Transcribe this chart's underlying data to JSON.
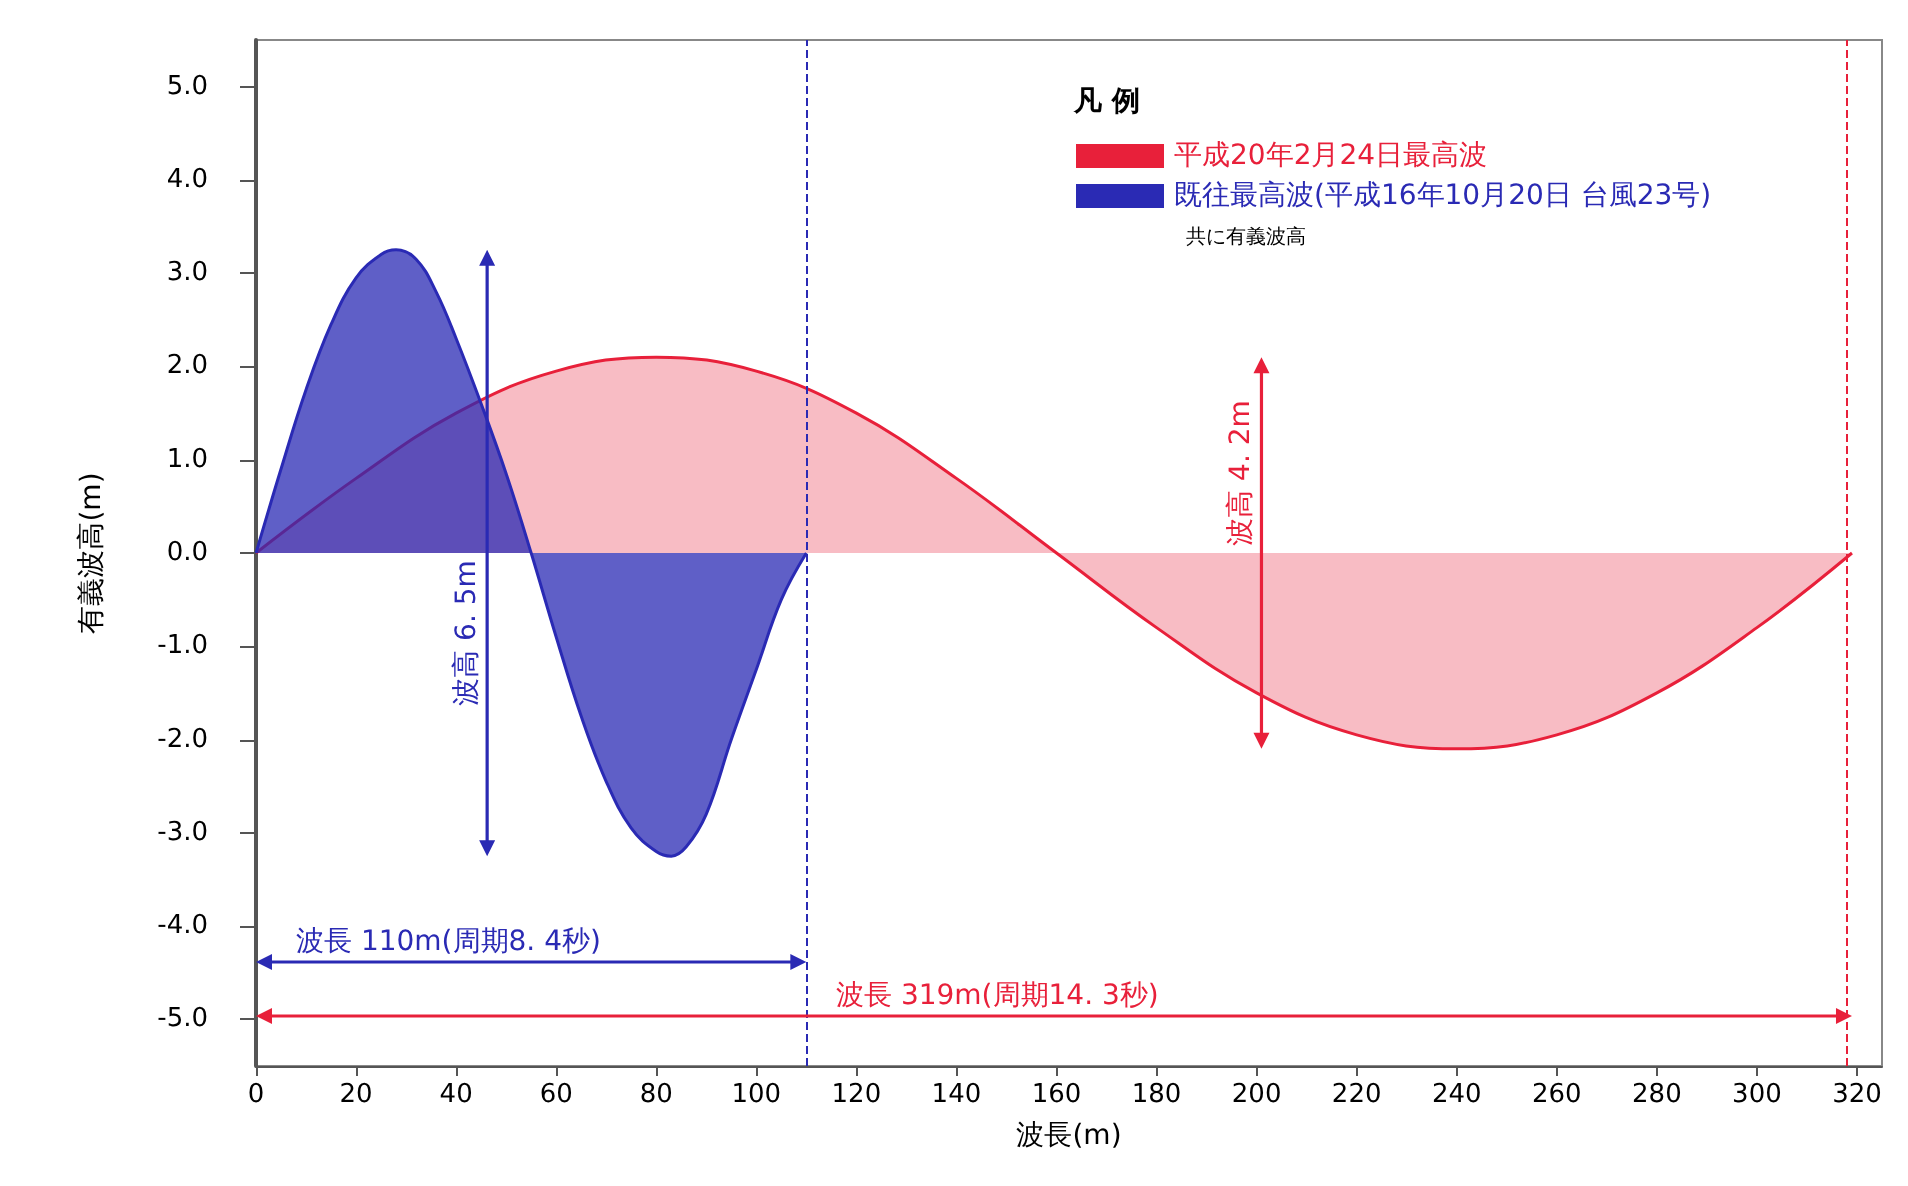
{
  "chart_data": {
    "type": "area",
    "xlabel": "波長(m)",
    "ylabel": "有義波高(m)",
    "legend_title": "凡 例",
    "xlim": [
      0,
      325
    ],
    "ylim": [
      -5.5,
      5.5
    ],
    "xticks": [
      0,
      20,
      40,
      60,
      80,
      100,
      120,
      140,
      160,
      180,
      200,
      220,
      240,
      260,
      280,
      300,
      320
    ],
    "yticks": [
      {
        "value": -5,
        "label": "-5.0"
      },
      {
        "value": -4,
        "label": "-4.0"
      },
      {
        "value": -3,
        "label": "-3.0"
      },
      {
        "value": -2,
        "label": "-2.0"
      },
      {
        "value": -1,
        "label": "-1.0"
      },
      {
        "value": 0,
        "label": "0.0"
      },
      {
        "value": 1,
        "label": "1.0"
      },
      {
        "value": 2,
        "label": "2.0"
      },
      {
        "value": 3,
        "label": "3.0"
      },
      {
        "value": 4,
        "label": "4.0"
      },
      {
        "value": 5,
        "label": "5.0"
      }
    ],
    "grid": false,
    "legend": "top right",
    "marker": "none",
    "line_style": "solid",
    "series": [
      {
        "name": "平成20年2月24日最高波",
        "color": "#e8203a",
        "x": [
          0,
          20,
          40,
          60,
          80,
          100,
          120,
          140,
          160,
          180,
          200,
          220,
          240,
          260,
          280,
          300,
          319
        ],
        "values": [
          0,
          0.8,
          1.5,
          1.95,
          2.1,
          1.95,
          1.5,
          0.8,
          0,
          -0.8,
          -1.5,
          -1.95,
          -2.1,
          -1.95,
          -1.5,
          -0.8,
          0
        ]
      },
      {
        "name": "既往最高波(平成16年10月20日 台風23号)",
        "color": "#2a2ab4",
        "x": [
          0,
          5,
          10,
          15,
          20,
          25,
          28,
          32,
          36,
          40,
          45,
          50,
          55,
          60,
          65,
          70,
          75,
          80,
          83,
          86,
          90,
          95,
          100,
          105,
          110
        ],
        "values": [
          0,
          0.9,
          1.75,
          2.45,
          2.95,
          3.2,
          3.25,
          3.15,
          2.8,
          2.3,
          1.6,
          0.85,
          0,
          -0.9,
          -1.75,
          -2.45,
          -2.95,
          -3.2,
          -3.25,
          -3.15,
          -2.8,
          -2.0,
          -1.25,
          -0.5,
          0
        ]
      }
    ],
    "ref_lines": [
      {
        "axis": "x",
        "value": 110,
        "color": "#2a2ab4",
        "line_style": "dashed"
      },
      {
        "axis": "x",
        "value": 318,
        "color": "#e8203a",
        "line_style": "dashed"
      }
    ],
    "annotations": [
      "共に有義波高",
      "波高 4. 2m",
      "波高 6. 5m",
      "波長 319m(周期14. 3秒)",
      "波長 110m(周期8. 4秒)"
    ]
  }
}
